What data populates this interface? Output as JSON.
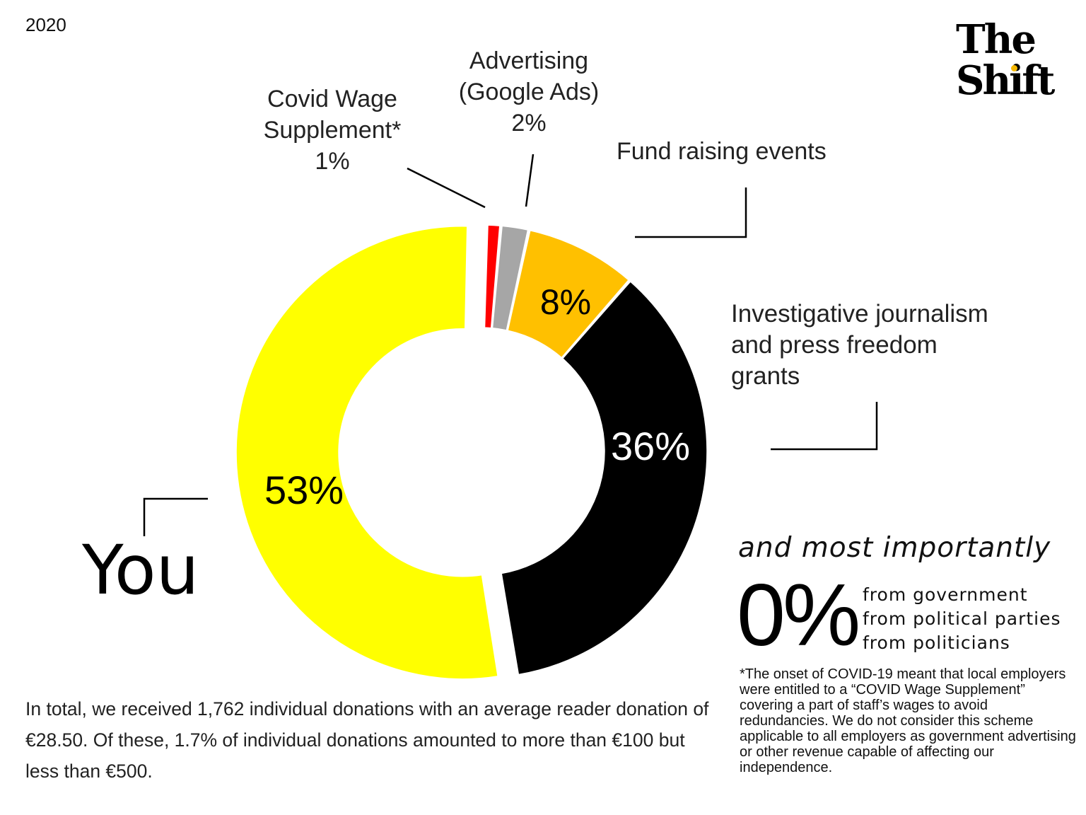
{
  "year": "2020",
  "logo": {
    "line1": "The",
    "line2": "Shift",
    "accent_color": "#f5b800"
  },
  "chart_data": {
    "type": "pie",
    "variant": "donut",
    "slices": [
      {
        "label": "Covid Wage Supplement*",
        "value": 1,
        "value_label": "1%",
        "color": "#ff0000"
      },
      {
        "label": "Advertising (Google Ads)",
        "value": 2,
        "value_label": "2%",
        "color": "#a6a6a6"
      },
      {
        "label": "Fund raising events",
        "value": 8,
        "value_label": "8%",
        "color": "#ffc000"
      },
      {
        "label": "Investigative journalism and press freedom grants",
        "value": 36,
        "value_label": "36%",
        "color": "#000000"
      },
      {
        "label": "You",
        "value": 53,
        "value_label": "53%",
        "color": "#ffff00"
      }
    ]
  },
  "labels": {
    "covid_line1": "Covid Wage",
    "covid_line2": "Supplement*",
    "covid_pct": "1%",
    "adv_line1": "Advertising",
    "adv_line2": "(Google Ads)",
    "adv_pct": "2%",
    "fund": "Fund raising events",
    "grants_line1": "Investigative journalism",
    "grants_line2": "and press freedom",
    "grants_line3": "grants",
    "you": "You"
  },
  "importantly": {
    "title": "and most importantly",
    "zero": "0%",
    "sources": [
      "from government",
      "from political parties",
      "from politicians"
    ]
  },
  "footnote": "*The onset of COVID-19 meant that local employers were entitled to a “COVID Wage Supplement” covering a part of staff’s wages to avoid redundancies. We do not consider this scheme applicable to all employers as government advertising or other revenue capable of affecting our independence.",
  "summary": "In total, we received 1,762 individual donations with an average reader donation of €28.50. Of these, 1.7% of individual donations amounted to more than €100 but less than €500."
}
